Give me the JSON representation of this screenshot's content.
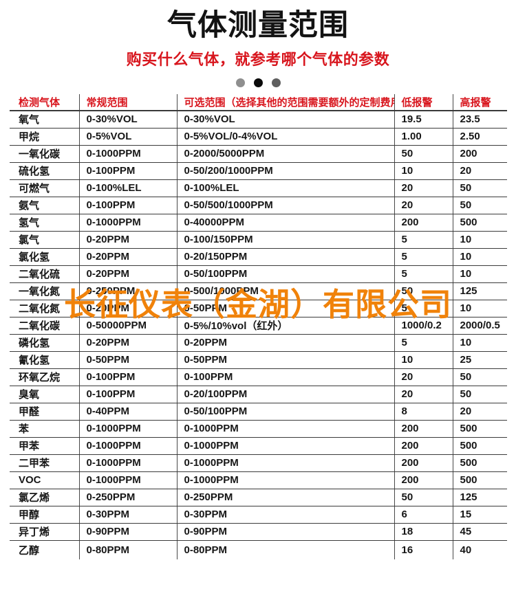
{
  "page": {
    "title": "气体测量范围",
    "subtitle": "购买什么气体，就参考哪个气体的参数",
    "watermark": "长征仪表（金湖）有限公司"
  },
  "colors": {
    "accent_red": "#d8151d",
    "watermark_orange": "#f0820a",
    "table_border": "#3a3a3a",
    "dot_left": "#8f8f8f",
    "dot_middle": "#0a0a0a",
    "dot_right": "#5f5f5f"
  },
  "carousel": {
    "dot_count": 3
  },
  "table": {
    "headers": [
      "检测气体",
      "常规范围",
      "可选范围（选择其他的范围需要额外的定制费用）",
      "低报警",
      "高报警"
    ],
    "rows": [
      [
        "氧气",
        "0-30%VOL",
        "0-30%VOL",
        "19.5",
        "23.5"
      ],
      [
        "甲烷",
        "0-5%VOL",
        "0-5%VOL/0-4%VOL",
        "1.00",
        "2.50"
      ],
      [
        "一氧化碳",
        "0-1000PPM",
        "0-2000/5000PPM",
        "50",
        "200"
      ],
      [
        "硫化氢",
        "0-100PPM",
        "0-50/200/1000PPM",
        "10",
        "20"
      ],
      [
        "可燃气",
        "0-100%LEL",
        "0-100%LEL",
        "20",
        "50"
      ],
      [
        "氨气",
        "0-100PPM",
        "0-50/500/1000PPM",
        "20",
        "50"
      ],
      [
        "氢气",
        "0-1000PPM",
        "0-40000PPM",
        "200",
        "500"
      ],
      [
        "氯气",
        "0-20PPM",
        "0-100/150PPM",
        "5",
        "10"
      ],
      [
        "氯化氢",
        "0-20PPM",
        "0-20/150PPM",
        "5",
        "10"
      ],
      [
        "二氧化硫",
        "0-20PPM",
        "0-50/100PPM",
        "5",
        "10"
      ],
      [
        "一氧化氮",
        "0-250PPM",
        "0-500/1000PPM",
        "50",
        "125"
      ],
      [
        "二氧化氮",
        "0-20PPM",
        "0-50PPM",
        "5",
        "10"
      ],
      [
        "二氧化碳",
        "0-50000PPM",
        "0-5%/10%vol（红外）",
        "1000/0.2",
        "2000/0.5"
      ],
      [
        "磷化氢",
        "0-20PPM",
        "0-20PPM",
        "5",
        "10"
      ],
      [
        "氰化氢",
        "0-50PPM",
        "0-50PPM",
        "10",
        "25"
      ],
      [
        "环氧乙烷",
        "0-100PPM",
        "0-100PPM",
        "20",
        "50"
      ],
      [
        "臭氧",
        "0-100PPM",
        "0-20/100PPM",
        "20",
        "50"
      ],
      [
        "甲醛",
        "0-40PPM",
        "0-50/100PPM",
        "8",
        "20"
      ],
      [
        "苯",
        "0-1000PPM",
        "0-1000PPM",
        "200",
        "500"
      ],
      [
        "甲苯",
        "0-1000PPM",
        "0-1000PPM",
        "200",
        "500"
      ],
      [
        "二甲苯",
        "0-1000PPM",
        "0-1000PPM",
        "200",
        "500"
      ],
      [
        "VOC",
        "0-1000PPM",
        "0-1000PPM",
        "200",
        "500"
      ],
      [
        "氯乙烯",
        "0-250PPM",
        "0-250PPM",
        "50",
        "125"
      ],
      [
        "甲醇",
        "0-30PPM",
        "0-30PPM",
        "6",
        "15"
      ],
      [
        "异丁烯",
        "0-90PPM",
        "0-90PPM",
        "18",
        "45"
      ],
      [
        "乙醇",
        "0-80PPM",
        "0-80PPM",
        "16",
        "40"
      ]
    ],
    "cell_names": [
      "cell-gas-name",
      "cell-normal-range",
      "cell-optional-range",
      "cell-low-alarm",
      "cell-high-alarm"
    ]
  }
}
